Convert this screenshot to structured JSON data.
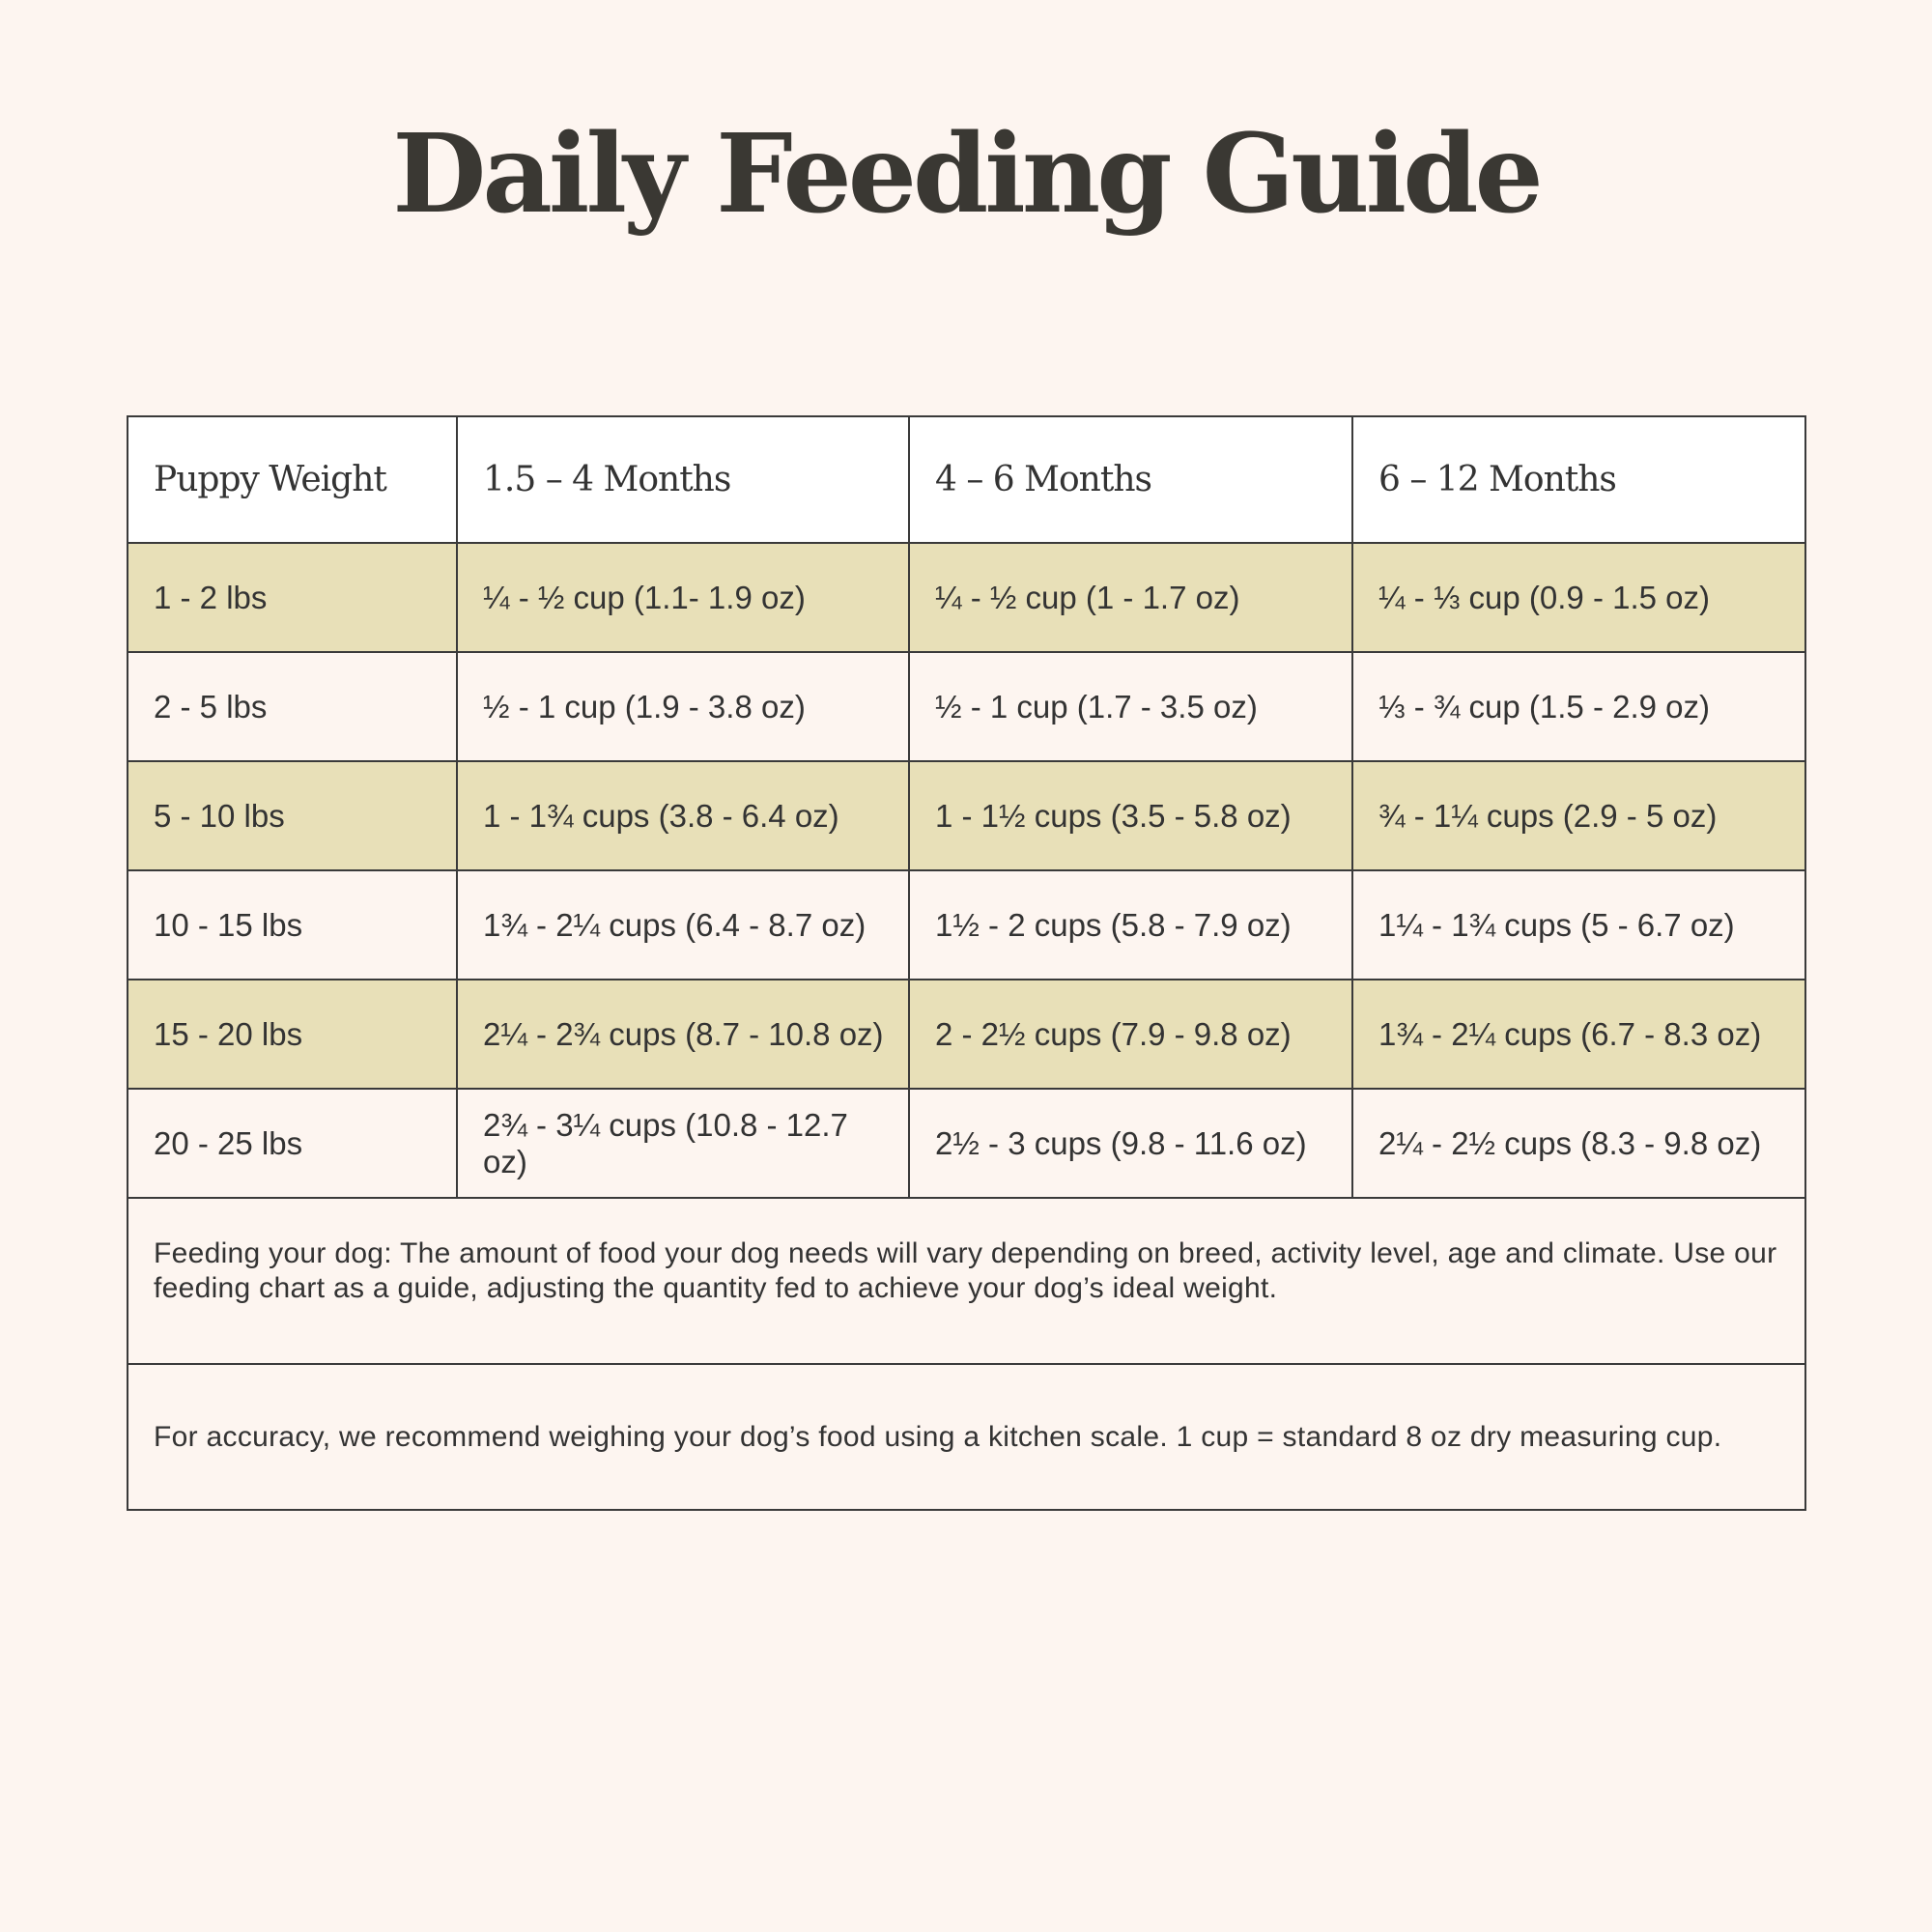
{
  "header": {
    "title": "Daily Feeding Guide"
  },
  "table": {
    "headers": [
      "Puppy Weight",
      "1.5 – 4 Months",
      "4 – 6 Months",
      "6 – 12 Months"
    ],
    "rows": [
      [
        "1 - 2 lbs",
        "¼ - ½ cup (1.1- 1.9 oz)",
        "¼ - ½ cup (1 - 1.7 oz)",
        "¼ - ⅓ cup (0.9 - 1.5 oz)"
      ],
      [
        "2 - 5 lbs",
        "½ - 1 cup (1.9 - 3.8 oz)",
        "½ - 1 cup (1.7 - 3.5 oz)",
        "⅓ - ¾ cup (1.5 - 2.9 oz)"
      ],
      [
        "5 - 10 lbs",
        "1 - 1¾ cups (3.8 - 6.4 oz)",
        "1 - 1½ cups (3.5 - 5.8 oz)",
        "¾ - 1¼ cups (2.9 - 5 oz)"
      ],
      [
        "10 - 15 lbs",
        "1¾ - 2¼ cups (6.4 - 8.7 oz)",
        "1½ - 2 cups (5.8 - 7.9 oz)",
        "1¼ - 1¾ cups (5 - 6.7 oz)"
      ],
      [
        "15 - 20 lbs",
        "2¼ - 2¾ cups (8.7 - 10.8 oz)",
        "2 - 2½ cups (7.9 - 9.8 oz)",
        "1¾ - 2¼ cups (6.7 - 8.3 oz)"
      ],
      [
        "20 - 25 lbs",
        "2¾ - 3¼ cups (10.8 - 12.7 oz)",
        "2½ - 3 cups (9.8 - 11.6 oz)",
        "2¼ - 2½ cups (8.3 - 9.8 oz)"
      ]
    ],
    "notes": [
      "Feeding your dog: The amount of food your dog needs will vary depending on breed, activity level, age and climate. Use our feeding chart as a guide, adjusting the quantity fed to achieve your dog’s ideal weight.",
      "For accuracy, we recommend weighing your dog’s food using a kitchen scale. 1 cup = standard 8 oz dry measuring cup."
    ]
  }
}
